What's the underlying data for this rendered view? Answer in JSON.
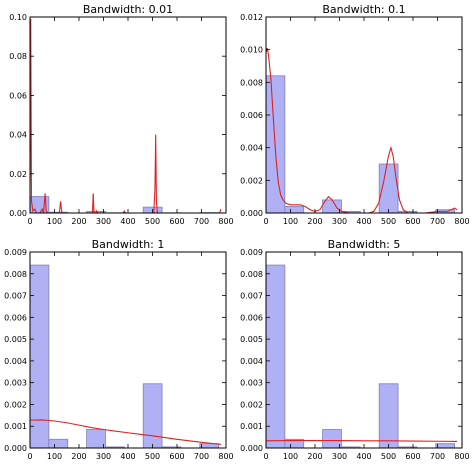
{
  "chart_data": [
    {
      "type": "histogram-kde",
      "title": "Bandwidth: 0.01",
      "xlim": [
        0,
        800
      ],
      "ylim": [
        0,
        0.1
      ],
      "xticks": [
        "0",
        "100",
        "200",
        "300",
        "400",
        "500",
        "600",
        "700",
        "800"
      ],
      "yticks": [
        "0.00",
        "0.02",
        "0.04",
        "0.06",
        "0.08",
        "0.10"
      ],
      "bins": [
        {
          "x0": 0,
          "x1": 77,
          "value": 0.0084
        },
        {
          "x0": 77,
          "x1": 154,
          "value": 0.0004
        },
        {
          "x0": 231,
          "x1": 308,
          "value": 0.0008
        },
        {
          "x0": 308,
          "x1": 385,
          "value": 0.0001
        },
        {
          "x0": 462,
          "x1": 539,
          "value": 0.003
        },
        {
          "x0": 539,
          "x1": 616,
          "value": 0.0001
        },
        {
          "x0": 693,
          "x1": 770,
          "value": 0.0002
        }
      ],
      "kde": [
        [
          0,
          0.012
        ],
        [
          3,
          0.099
        ],
        [
          6,
          0.006
        ],
        [
          12,
          0.001
        ],
        [
          20,
          0.002
        ],
        [
          26,
          0.0
        ],
        [
          40,
          0.0
        ],
        [
          50,
          0.002
        ],
        [
          55,
          0.0
        ],
        [
          62,
          0.01
        ],
        [
          66,
          0.001
        ],
        [
          72,
          0.0
        ],
        [
          120,
          0.0
        ],
        [
          125,
          0.006
        ],
        [
          128,
          0.002
        ],
        [
          131,
          0.0
        ],
        [
          255,
          0.0
        ],
        [
          258,
          0.01
        ],
        [
          261,
          0.001
        ],
        [
          264,
          0.0
        ],
        [
          270,
          0.0
        ],
        [
          272,
          0.001
        ],
        [
          275,
          0.0
        ],
        [
          380,
          0.0
        ],
        [
          385,
          0.001
        ],
        [
          390,
          0.0
        ],
        [
          505,
          0.0
        ],
        [
          510,
          0.012
        ],
        [
          513,
          0.04
        ],
        [
          516,
          0.006
        ],
        [
          520,
          0.0
        ],
        [
          775,
          0.0
        ],
        [
          778,
          0.002
        ]
      ]
    },
    {
      "type": "histogram-kde",
      "title": "Bandwidth: 0.1",
      "xlim": [
        0,
        800
      ],
      "ylim": [
        0,
        0.012
      ],
      "xticks": [
        "0",
        "100",
        "200",
        "300",
        "400",
        "500",
        "600",
        "700",
        "800"
      ],
      "yticks": [
        "0.000",
        "0.002",
        "0.004",
        "0.006",
        "0.008",
        "0.010",
        "0.012"
      ],
      "bins": [
        {
          "x0": 0,
          "x1": 77,
          "value": 0.0084
        },
        {
          "x0": 77,
          "x1": 154,
          "value": 0.0004
        },
        {
          "x0": 231,
          "x1": 308,
          "value": 0.0008
        },
        {
          "x0": 308,
          "x1": 385,
          "value": 0.0001
        },
        {
          "x0": 462,
          "x1": 539,
          "value": 0.003
        },
        {
          "x0": 539,
          "x1": 616,
          "value": 0.0001
        },
        {
          "x0": 693,
          "x1": 770,
          "value": 0.0002
        }
      ],
      "kde": [
        [
          0,
          0.0098
        ],
        [
          5,
          0.0101
        ],
        [
          10,
          0.0097
        ],
        [
          20,
          0.0082
        ],
        [
          30,
          0.0058
        ],
        [
          40,
          0.0035
        ],
        [
          50,
          0.0019
        ],
        [
          60,
          0.0011
        ],
        [
          70,
          0.0008
        ],
        [
          80,
          0.0006
        ],
        [
          100,
          0.0005
        ],
        [
          120,
          0.0005
        ],
        [
          140,
          0.0005
        ],
        [
          160,
          0.0004
        ],
        [
          180,
          0.0002
        ],
        [
          200,
          0.0001
        ],
        [
          220,
          0.0002
        ],
        [
          240,
          0.0007
        ],
        [
          255,
          0.001
        ],
        [
          270,
          0.0008
        ],
        [
          290,
          0.0003
        ],
        [
          310,
          0.0001
        ],
        [
          340,
          0.0
        ],
        [
          380,
          0.0
        ],
        [
          420,
          0.0
        ],
        [
          440,
          0.0001
        ],
        [
          460,
          0.0006
        ],
        [
          480,
          0.0019
        ],
        [
          500,
          0.0035
        ],
        [
          510,
          0.004
        ],
        [
          520,
          0.0034
        ],
        [
          530,
          0.0022
        ],
        [
          545,
          0.0008
        ],
        [
          560,
          0.0002
        ],
        [
          580,
          0.0
        ],
        [
          650,
          0.0
        ],
        [
          700,
          0.0001
        ],
        [
          740,
          0.0001
        ],
        [
          770,
          0.0003
        ],
        [
          780,
          0.0002
        ]
      ]
    },
    {
      "type": "histogram-kde",
      "title": "Bandwidth: 1",
      "xlim": [
        0,
        800
      ],
      "ylim": [
        0,
        0.009
      ],
      "xticks": [
        "0",
        "100",
        "200",
        "300",
        "400",
        "500",
        "600",
        "700",
        "800"
      ],
      "yticks": [
        "0.000",
        "0.001",
        "0.002",
        "0.003",
        "0.004",
        "0.005",
        "0.006",
        "0.007",
        "0.008",
        "0.009"
      ],
      "bins": [
        {
          "x0": 0,
          "x1": 77,
          "value": 0.0084
        },
        {
          "x0": 77,
          "x1": 154,
          "value": 0.0004
        },
        {
          "x0": 231,
          "x1": 308,
          "value": 0.00085
        },
        {
          "x0": 308,
          "x1": 385,
          "value": 5e-05
        },
        {
          "x0": 462,
          "x1": 539,
          "value": 0.00295
        },
        {
          "x0": 539,
          "x1": 616,
          "value": 5e-05
        },
        {
          "x0": 693,
          "x1": 770,
          "value": 0.0002
        }
      ],
      "kde": [
        [
          0,
          0.00128
        ],
        [
          50,
          0.00129
        ],
        [
          100,
          0.00124
        ],
        [
          150,
          0.00116
        ],
        [
          200,
          0.00105
        ],
        [
          250,
          0.00094
        ],
        [
          300,
          0.00085
        ],
        [
          350,
          0.00077
        ],
        [
          400,
          0.0007
        ],
        [
          450,
          0.00063
        ],
        [
          500,
          0.00056
        ],
        [
          550,
          0.00048
        ],
        [
          600,
          0.0004
        ],
        [
          650,
          0.00033
        ],
        [
          700,
          0.00026
        ],
        [
          750,
          0.0002
        ],
        [
          780,
          0.00017
        ]
      ]
    },
    {
      "type": "histogram-kde",
      "title": "Bandwidth: 5",
      "xlim": [
        0,
        800
      ],
      "ylim": [
        0,
        0.009
      ],
      "xticks": [
        "0",
        "100",
        "200",
        "300",
        "400",
        "500",
        "600",
        "700",
        "800"
      ],
      "yticks": [
        "0.000",
        "0.001",
        "0.002",
        "0.003",
        "0.004",
        "0.005",
        "0.006",
        "0.007",
        "0.008",
        "0.009"
      ],
      "bins": [
        {
          "x0": 0,
          "x1": 77,
          "value": 0.0084
        },
        {
          "x0": 77,
          "x1": 154,
          "value": 0.0004
        },
        {
          "x0": 231,
          "x1": 308,
          "value": 0.00085
        },
        {
          "x0": 308,
          "x1": 385,
          "value": 5e-05
        },
        {
          "x0": 462,
          "x1": 539,
          "value": 0.00295
        },
        {
          "x0": 539,
          "x1": 616,
          "value": 5e-05
        },
        {
          "x0": 693,
          "x1": 770,
          "value": 0.0002
        }
      ],
      "kde": [
        [
          0,
          0.00033
        ],
        [
          100,
          0.00034
        ],
        [
          200,
          0.00034
        ],
        [
          300,
          0.00034
        ],
        [
          400,
          0.00033
        ],
        [
          500,
          0.00033
        ],
        [
          600,
          0.00032
        ],
        [
          700,
          0.00031
        ],
        [
          780,
          0.0003
        ]
      ]
    }
  ],
  "colors": {
    "bar_fill": "#b0b0f5",
    "bar_stroke": "#8080b8",
    "kde_line": "#e02020",
    "axes": "#000000"
  }
}
